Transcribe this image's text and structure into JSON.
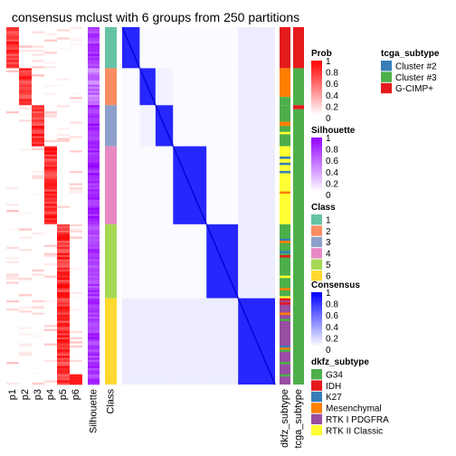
{
  "chart_data": {
    "type": "heatmap",
    "title": "consensus mclust with 6 groups from 250 partitions",
    "n_groups": 6,
    "prob_columns": [
      "p1",
      "p2",
      "p3",
      "p4",
      "p5",
      "p6"
    ],
    "column_labels": {
      "silhouette": "Silhouette",
      "class": "Class",
      "dkfz": "dkfz_subtype",
      "tcga": "tcga_subtype"
    },
    "group_sizes": [
      20,
      18,
      20,
      38,
      36,
      42
    ],
    "class_colors": [
      "#66C2A5",
      "#FC8D62",
      "#8DA0CB",
      "#E78AC3",
      "#A6D854",
      "#FFD92F"
    ],
    "silhouette_by_group": [
      0.8,
      0.55,
      0.85,
      0.85,
      0.75,
      0.8
    ],
    "tcga_blocks": [
      {
        "end": 20,
        "color": "#E41A1C"
      },
      {
        "end": 38,
        "color": "#4DAF4A"
      },
      {
        "end": 40,
        "color": "#E41A1C"
      },
      {
        "end": 174,
        "color": "#4DAF4A"
      }
    ],
    "dkfz_blocks": [
      {
        "end": 20,
        "color": "#E41A1C"
      },
      {
        "end": 34,
        "color": "#FF7F00"
      },
      {
        "end": 38,
        "color": "#4DAF4A"
      },
      {
        "end": 58,
        "color": "#4DAF4A"
      },
      {
        "end": 96,
        "color": "#FFFF33"
      },
      {
        "end": 132,
        "color": "#4DAF4A"
      },
      {
        "end": 174,
        "color": "#984EA3"
      }
    ],
    "legends": [
      {
        "title": "Prob",
        "type": "gradient",
        "colors": [
          "#FFFFFF",
          "#FF0000"
        ],
        "ticks": [
          "1",
          "0.8",
          "0.6",
          "0.4",
          "0.2",
          "0"
        ]
      },
      {
        "title": "Silhouette",
        "type": "gradient",
        "colors": [
          "#FFFFFF",
          "#9400FF"
        ],
        "ticks": [
          "1",
          "0.8",
          "0.6",
          "0.4",
          "0.2",
          "0"
        ]
      },
      {
        "title": "Class",
        "type": "discrete",
        "items": [
          {
            "label": "1",
            "color": "#66C2A5"
          },
          {
            "label": "2",
            "color": "#FC8D62"
          },
          {
            "label": "3",
            "color": "#8DA0CB"
          },
          {
            "label": "4",
            "color": "#E78AC3"
          },
          {
            "label": "5",
            "color": "#A6D854"
          },
          {
            "label": "6",
            "color": "#FFD92F"
          }
        ]
      },
      {
        "title": "Consensus",
        "type": "gradient",
        "colors": [
          "#FFFFFF",
          "#0000FF"
        ],
        "ticks": [
          "1",
          "0.8",
          "0.6",
          "0.4",
          "0.2",
          "0"
        ]
      },
      {
        "title": "dkfz_subtype",
        "type": "discrete",
        "items": [
          {
            "label": "G34",
            "color": "#4DAF4A"
          },
          {
            "label": "IDH",
            "color": "#E41A1C"
          },
          {
            "label": "K27",
            "color": "#377EB8"
          },
          {
            "label": "Mesenchymal",
            "color": "#FF7F00"
          },
          {
            "label": "RTK I PDGFRA",
            "color": "#984EA3"
          },
          {
            "label": "RTK II Classic",
            "color": "#FFFF33"
          }
        ]
      },
      {
        "title": "tcga_subtype",
        "type": "discrete",
        "items": [
          {
            "label": "Cluster #2",
            "color": "#377EB8"
          },
          {
            "label": "Cluster #3",
            "color": "#4DAF4A"
          },
          {
            "label": "G-CIMP+",
            "color": "#E41A1C"
          }
        ]
      }
    ]
  }
}
